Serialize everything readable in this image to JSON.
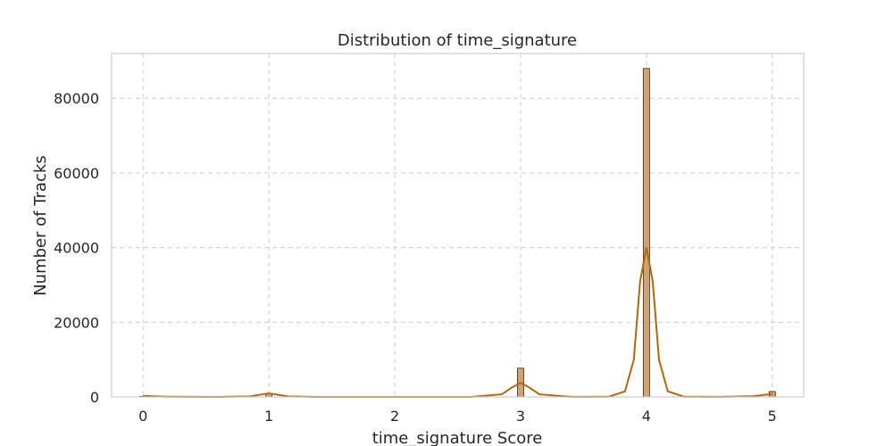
{
  "chart_data": {
    "type": "bar",
    "title": "Distribution of time_signature",
    "xlabel": "time_signature Score",
    "ylabel": "Number of Tracks",
    "xlim": [
      -0.25,
      5.25
    ],
    "ylim": [
      0,
      92000
    ],
    "x_ticks": [
      0,
      1,
      2,
      3,
      4,
      5
    ],
    "y_ticks": [
      0,
      20000,
      40000,
      60000,
      80000
    ],
    "grid": true,
    "bin_width": 0.05,
    "bars": [
      {
        "x": 0,
        "value": 160
      },
      {
        "x": 1,
        "value": 970
      },
      {
        "x": 3,
        "value": 7700
      },
      {
        "x": 4,
        "value": 88000
      },
      {
        "x": 5,
        "value": 1450
      }
    ],
    "kde": {
      "color": "#b5660c",
      "points": [
        [
          0,
          300
        ],
        [
          0.1,
          150
        ],
        [
          0.2,
          60
        ],
        [
          0.4,
          20
        ],
        [
          0.6,
          10
        ],
        [
          0.85,
          150
        ],
        [
          0.95,
          700
        ],
        [
          1.0,
          950
        ],
        [
          1.05,
          700
        ],
        [
          1.15,
          150
        ],
        [
          1.4,
          10
        ],
        [
          2.0,
          0
        ],
        [
          2.6,
          10
        ],
        [
          2.85,
          700
        ],
        [
          2.93,
          2500
        ],
        [
          3.0,
          3800
        ],
        [
          3.07,
          2500
        ],
        [
          3.15,
          700
        ],
        [
          3.4,
          30
        ],
        [
          3.7,
          50
        ],
        [
          3.83,
          1500
        ],
        [
          3.9,
          10000
        ],
        [
          3.95,
          31000
        ],
        [
          4.0,
          40000
        ],
        [
          4.05,
          31000
        ],
        [
          4.1,
          10000
        ],
        [
          4.17,
          1500
        ],
        [
          4.3,
          50
        ],
        [
          4.6,
          20
        ],
        [
          4.85,
          200
        ],
        [
          4.95,
          600
        ],
        [
          5.0,
          700
        ]
      ]
    },
    "bar_color": "#cda274"
  }
}
